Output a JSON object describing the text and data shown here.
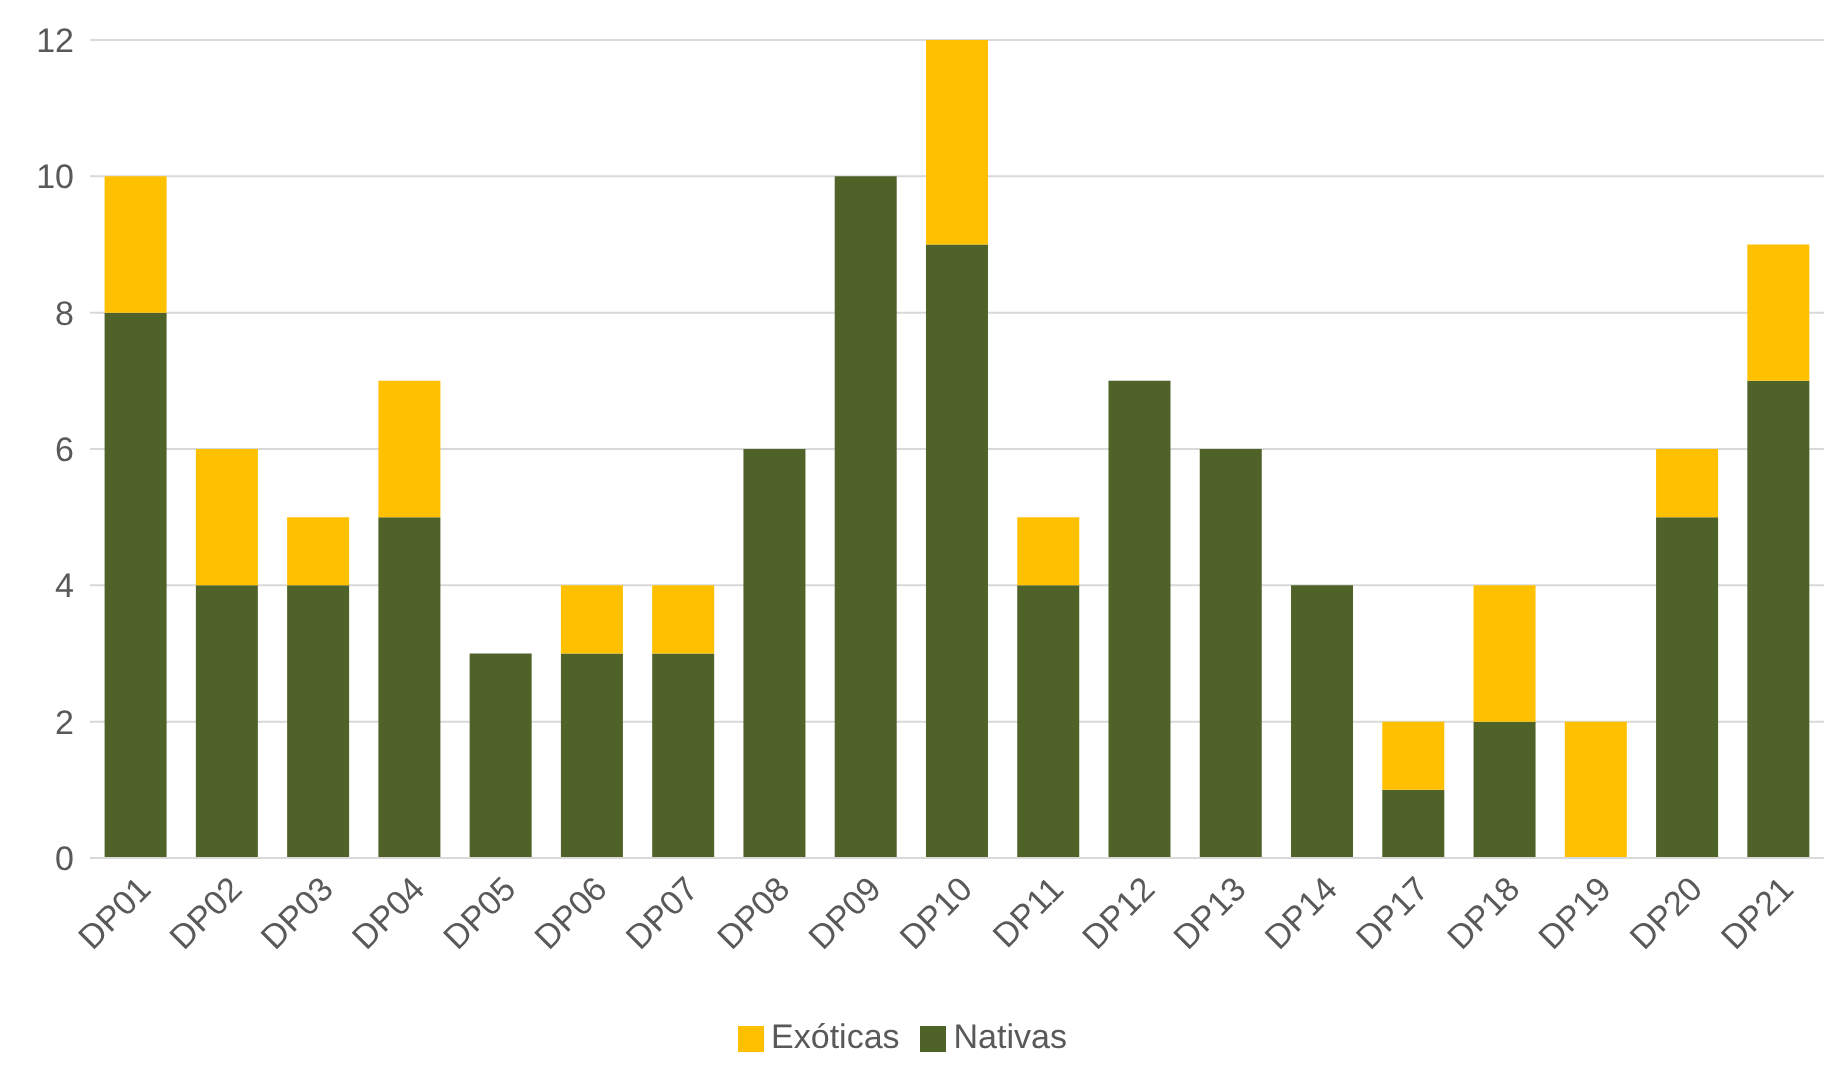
{
  "chart_data": {
    "type": "bar",
    "stacked": true,
    "categories": [
      "DP01",
      "DP02",
      "DP03",
      "DP04",
      "DP05",
      "DP06",
      "DP07",
      "DP08",
      "DP09",
      "DP10",
      "DP11",
      "DP12",
      "DP13",
      "DP14",
      "DP17",
      "DP18",
      "DP19",
      "DP20",
      "DP21"
    ],
    "series": [
      {
        "name": "Nativas",
        "color": "#4f6228",
        "values": [
          8,
          4,
          4,
          5,
          3,
          3,
          3,
          6,
          10,
          9,
          4,
          7,
          6,
          4,
          1,
          2,
          0,
          5,
          7
        ]
      },
      {
        "name": "Exóticas",
        "color": "#ffc000",
        "values": [
          2,
          2,
          1,
          2,
          0,
          1,
          1,
          0,
          0,
          3,
          1,
          0,
          0,
          0,
          1,
          2,
          2,
          1,
          2
        ]
      }
    ],
    "ylim": [
      0,
      12
    ],
    "yticks": [
      0,
      2,
      4,
      6,
      8,
      10,
      12
    ],
    "grid": "y",
    "legend": "bottom"
  }
}
